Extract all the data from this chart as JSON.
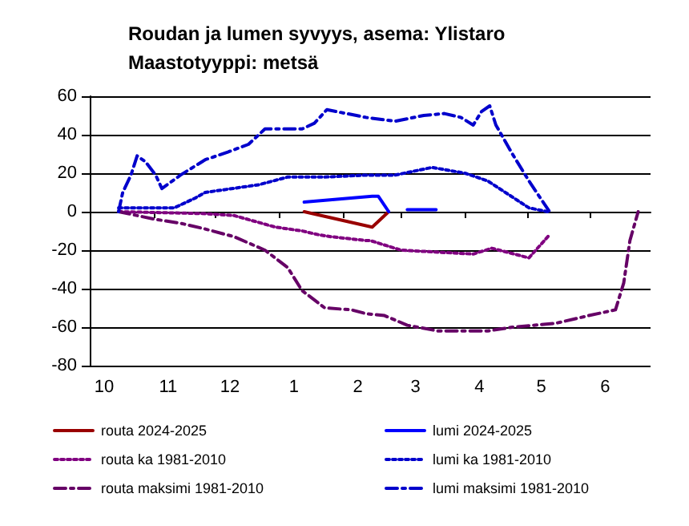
{
  "chart_data": {
    "type": "line",
    "title": "Roudan ja lumen syvyys, asema: Ylistaro",
    "subtitle": "Maastotyyppi: metsä",
    "xlim": [
      "2024-10-01",
      "2025-06-30"
    ],
    "xticks": [
      {
        "value": "2024-10-08",
        "label": "10"
      },
      {
        "value": "2024-11-01",
        "label": null
      },
      {
        "value": "2024-11-08",
        "label": "11"
      },
      {
        "value": "2024-12-01",
        "label": null
      },
      {
        "value": "2024-12-08",
        "label": "12"
      },
      {
        "value": "2025-01-01",
        "label": null
      },
      {
        "value": "2025-01-08",
        "label": "1"
      },
      {
        "value": "2025-02-01",
        "label": null
      },
      {
        "value": "2025-02-08",
        "label": "2"
      },
      {
        "value": "2025-03-01",
        "label": null
      },
      {
        "value": "2025-03-08",
        "label": "3"
      },
      {
        "value": "2025-04-01",
        "label": null
      },
      {
        "value": "2025-04-08",
        "label": "4"
      },
      {
        "value": "2025-05-01",
        "label": null
      },
      {
        "value": "2025-05-08",
        "label": "5"
      },
      {
        "value": "2025-06-01",
        "label": null
      },
      {
        "value": "2025-06-08",
        "label": "6"
      }
    ],
    "ylim": [
      -80,
      60
    ],
    "yticks": [
      -80,
      -60,
      -40,
      -20,
      0,
      20,
      40,
      60
    ],
    "grid": "y",
    "legend": "bottom",
    "marker": "none",
    "series": [
      {
        "name": "routa 2024-2025",
        "color": "#990000",
        "line_style": "solid",
        "x": [
          "2025-01-13",
          "2025-02-15",
          "2025-02-23"
        ],
        "values": [
          0,
          -8,
          0
        ]
      },
      {
        "name": "lumi 2024-2025",
        "color": "#0000ff",
        "line_style": "solid",
        "x": [
          "2025-01-13",
          "2025-02-15",
          "2025-02-18",
          "2025-02-23",
          "2025-03-01",
          "2025-03-04",
          "2025-03-18"
        ],
        "values": [
          5,
          8,
          8,
          0,
          null,
          1,
          1
        ]
      },
      {
        "name": "routa ka 1981-2010",
        "color": "#800080",
        "line_style": "dotted",
        "x": [
          "2024-10-15",
          "2024-11-26",
          "2024-12-10",
          "2024-12-30",
          "2025-01-12",
          "2025-01-20",
          "2025-01-26",
          "2025-02-12",
          "2025-02-14",
          "2025-03-01",
          "2025-04-05",
          "2025-04-14",
          "2025-05-02",
          "2025-05-12"
        ],
        "values": [
          0,
          -1,
          -2,
          -8,
          -10,
          -12,
          -13,
          -15,
          -15,
          -20,
          -22,
          -19,
          -24,
          -12
        ]
      },
      {
        "name": "lumi ka 1981-2010",
        "color": "#0000cc",
        "line_style": "dotted",
        "x": [
          "2024-10-15",
          "2024-11-02",
          "2024-11-11",
          "2024-11-21",
          "2024-11-26",
          "2024-12-22",
          "2025-01-05",
          "2025-01-23",
          "2025-02-12",
          "2025-02-26",
          "2025-03-16",
          "2025-04-01",
          "2025-04-12",
          "2025-04-22",
          "2025-05-02",
          "2025-05-11"
        ],
        "values": [
          2,
          2,
          2,
          7,
          10,
          14,
          18,
          18,
          19,
          19,
          23,
          20,
          16,
          9,
          2,
          0
        ]
      },
      {
        "name": "routa maksimi 1981-2010",
        "color": "#660066",
        "line_style": "dashed",
        "x": [
          "2024-10-15",
          "2024-11-02",
          "2024-11-14",
          "2024-11-26",
          "2024-12-10",
          "2024-12-25",
          "2025-01-05",
          "2025-01-12",
          "2025-01-23",
          "2025-02-05",
          "2025-02-12",
          "2025-02-21",
          "2025-03-04",
          "2025-03-19",
          "2025-04-12",
          "2025-04-24",
          "2025-05-15",
          "2025-05-31",
          "2025-06-13",
          "2025-06-17",
          "2025-06-20",
          "2025-06-24"
        ],
        "values": [
          0,
          -4,
          -6,
          -9,
          -13,
          -20,
          -29,
          -41,
          -50,
          -51,
          -53,
          -54,
          -59,
          -62,
          -62,
          -60,
          -58,
          -54,
          -51,
          -37,
          -15,
          0
        ]
      },
      {
        "name": "lumi maksimi 1981-2010",
        "color": "#0000cc",
        "line_style": "dashed",
        "x": [
          "2024-10-15",
          "2024-10-17",
          "2024-10-21",
          "2024-10-24",
          "2024-10-28",
          "2024-11-02",
          "2024-11-05",
          "2024-11-14",
          "2024-11-26",
          "2024-12-07",
          "2024-12-17",
          "2024-12-25",
          "2025-01-12",
          "2025-01-18",
          "2025-01-24",
          "2025-02-12",
          "2025-02-26",
          "2025-03-12",
          "2025-03-22",
          "2025-03-30",
          "2025-04-05",
          "2025-04-09",
          "2025-04-13",
          "2025-04-16",
          "2025-04-24",
          "2025-05-02",
          "2025-05-12"
        ],
        "values": [
          0,
          10,
          19,
          29,
          26,
          19,
          12,
          19,
          27,
          31,
          35,
          43,
          43,
          46,
          53,
          49,
          47,
          50,
          51,
          49,
          45,
          52,
          55,
          45,
          30,
          16,
          0
        ]
      }
    ]
  }
}
